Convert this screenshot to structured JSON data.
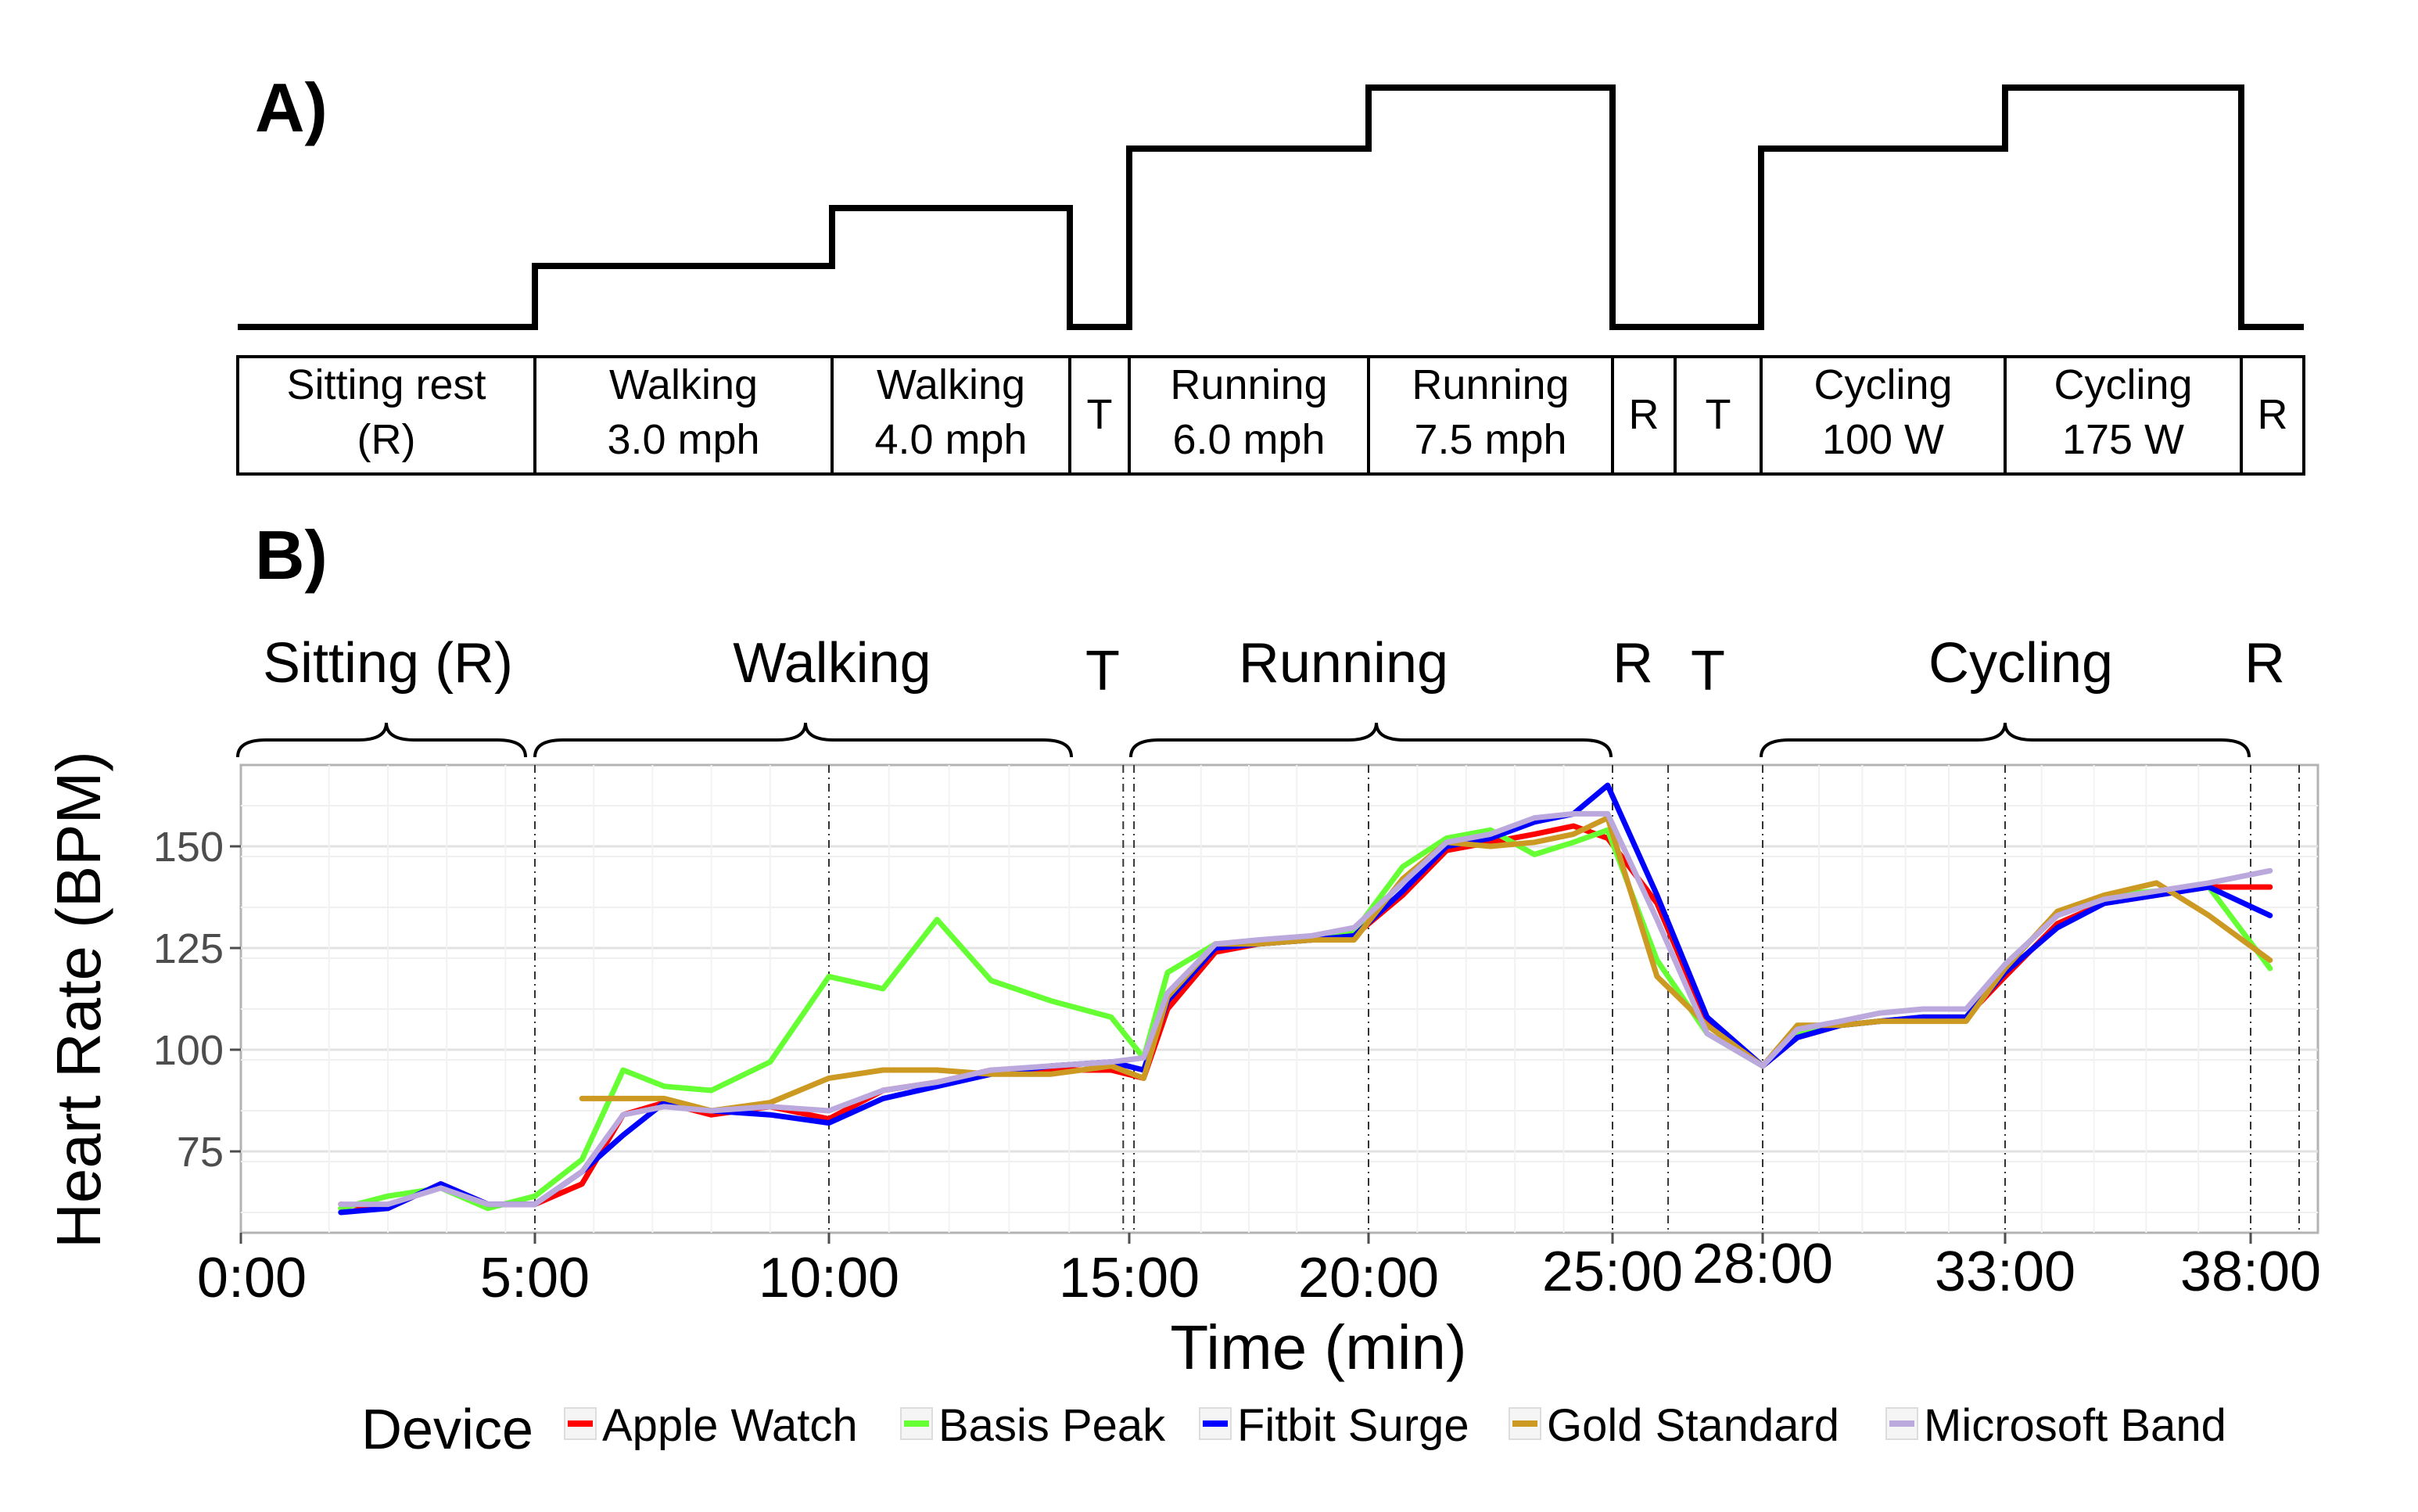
{
  "panel_a": {
    "label": "A)",
    "schedule": [
      {
        "name": "Sitting rest",
        "sub": "(R)",
        "level": 0
      },
      {
        "name": "Walking",
        "sub": "3.0 mph",
        "level": 1
      },
      {
        "name": "Walking",
        "sub": "4.0 mph",
        "level": 2
      },
      {
        "name": "T",
        "sub": "",
        "level": 0
      },
      {
        "name": "Running",
        "sub": "6.0 mph",
        "level": 3
      },
      {
        "name": "Running",
        "sub": "7.5 mph",
        "level": 4
      },
      {
        "name": "R",
        "sub": "",
        "level": 0
      },
      {
        "name": "T",
        "sub": "",
        "level": 0
      },
      {
        "name": "Cycling",
        "sub": "100 W",
        "level": 3
      },
      {
        "name": "Cycling",
        "sub": "175 W",
        "level": 4
      },
      {
        "name": "R",
        "sub": "",
        "level": 0
      }
    ]
  },
  "panel_b": {
    "label": "B)",
    "phases": {
      "sitting": "Sitting (R)",
      "walking": "Walking",
      "t1": "T",
      "running": "Running",
      "r1": "R",
      "t2": "T",
      "cycling": "Cycling",
      "r2": "R"
    }
  },
  "colors": {
    "Apple Watch": "#ff0000",
    "Basis Peak": "#66ff33",
    "Fitbit Surge": "#0000ff",
    "Gold Standard": "#cc9922",
    "Microsoft Band": "#bba8dd"
  },
  "chart_data": {
    "type": "line",
    "xlabel": "Time (min)",
    "ylabel": "Heart Rate (BPM)",
    "xlim": [
      0,
      38.5
    ],
    "ylim": [
      55,
      170
    ],
    "yticks": [
      75,
      100,
      125,
      150
    ],
    "xticks": [
      "0:00",
      "5:00",
      "10:00",
      "15:00",
      "20:00",
      "25:00",
      "28:00",
      "33:00",
      "38:00"
    ],
    "grid": true,
    "legend_title": "Device",
    "legend_position": "bottom",
    "series": [
      {
        "name": "Apple Watch",
        "points": [
          [
            1.7,
            62
          ],
          [
            2.5,
            61
          ],
          [
            3.4,
            67
          ],
          [
            4.2,
            62
          ],
          [
            5.0,
            62
          ],
          [
            5.8,
            67
          ],
          [
            6.5,
            84
          ],
          [
            7.2,
            87
          ],
          [
            8.0,
            84
          ],
          [
            9.0,
            86
          ],
          [
            10.0,
            83
          ],
          [
            10.9,
            90
          ],
          [
            11.8,
            92
          ],
          [
            12.7,
            95
          ],
          [
            13.7,
            95
          ],
          [
            14.7,
            95
          ],
          [
            15.3,
            93
          ],
          [
            15.8,
            110
          ],
          [
            16.8,
            124
          ],
          [
            17.7,
            126
          ],
          [
            18.8,
            127
          ],
          [
            19.7,
            128
          ],
          [
            20.7,
            138
          ],
          [
            21.6,
            149
          ],
          [
            22.5,
            151
          ],
          [
            23.4,
            153
          ],
          [
            24.2,
            155
          ],
          [
            24.9,
            152
          ],
          [
            25.8,
            136
          ],
          [
            26.7,
            107
          ],
          [
            27.7,
            96
          ],
          [
            28.5,
            103
          ],
          [
            29.5,
            106
          ],
          [
            30.4,
            107
          ],
          [
            31.4,
            108
          ],
          [
            32.4,
            108
          ],
          [
            33.3,
            118
          ],
          [
            34.3,
            131
          ],
          [
            35.2,
            136
          ],
          [
            36.2,
            138
          ],
          [
            37.2,
            140
          ],
          [
            38.2,
            140
          ]
        ]
      },
      {
        "name": "Basis Peak",
        "points": [
          [
            1.7,
            61
          ],
          [
            2.5,
            64
          ],
          [
            3.4,
            66
          ],
          [
            4.2,
            61
          ],
          [
            5.0,
            64
          ],
          [
            5.8,
            73
          ],
          [
            6.5,
            95
          ],
          [
            7.2,
            91
          ],
          [
            8.0,
            90
          ],
          [
            9.0,
            97
          ],
          [
            10.0,
            118
          ],
          [
            10.9,
            115
          ],
          [
            11.8,
            132
          ],
          [
            12.7,
            117
          ],
          [
            13.7,
            112
          ],
          [
            14.7,
            108
          ],
          [
            15.3,
            98
          ],
          [
            15.8,
            119
          ],
          [
            16.8,
            126
          ],
          [
            17.7,
            126
          ],
          [
            18.8,
            127
          ],
          [
            19.7,
            129
          ],
          [
            20.7,
            145
          ],
          [
            21.6,
            152
          ],
          [
            22.5,
            154
          ],
          [
            23.4,
            148
          ],
          [
            24.2,
            151
          ],
          [
            24.9,
            154
          ],
          [
            25.8,
            122
          ],
          [
            26.7,
            104
          ],
          [
            27.7,
            96
          ],
          [
            28.5,
            104
          ],
          [
            29.5,
            106
          ],
          [
            30.4,
            107
          ],
          [
            31.4,
            108
          ],
          [
            32.4,
            108
          ],
          [
            33.3,
            121
          ],
          [
            34.3,
            133
          ],
          [
            35.2,
            138
          ],
          [
            36.2,
            139
          ],
          [
            37.2,
            140
          ],
          [
            38.2,
            120
          ]
        ]
      },
      {
        "name": "Fitbit Surge",
        "points": [
          [
            1.7,
            60
          ],
          [
            2.5,
            61
          ],
          [
            3.4,
            67
          ],
          [
            4.2,
            62
          ],
          [
            5.0,
            62
          ],
          [
            5.8,
            70
          ],
          [
            6.5,
            79
          ],
          [
            7.2,
            87
          ],
          [
            8.0,
            85
          ],
          [
            9.0,
            84
          ],
          [
            10.0,
            82
          ],
          [
            10.9,
            88
          ],
          [
            11.8,
            91
          ],
          [
            12.7,
            94
          ],
          [
            13.7,
            96
          ],
          [
            14.7,
            97
          ],
          [
            15.3,
            95
          ],
          [
            15.8,
            112
          ],
          [
            16.8,
            125
          ],
          [
            17.7,
            126
          ],
          [
            18.8,
            127
          ],
          [
            19.7,
            128
          ],
          [
            20.7,
            139
          ],
          [
            21.6,
            150
          ],
          [
            22.5,
            152
          ],
          [
            23.4,
            156
          ],
          [
            24.2,
            158
          ],
          [
            24.9,
            165
          ],
          [
            25.8,
            138
          ],
          [
            26.7,
            108
          ],
          [
            27.7,
            96
          ],
          [
            28.5,
            103
          ],
          [
            29.5,
            106
          ],
          [
            30.4,
            107
          ],
          [
            31.4,
            108
          ],
          [
            32.4,
            108
          ],
          [
            33.3,
            119
          ],
          [
            34.3,
            130
          ],
          [
            35.2,
            136
          ],
          [
            36.2,
            138
          ],
          [
            37.2,
            140
          ],
          [
            38.2,
            133
          ]
        ]
      },
      {
        "name": "Gold Standard",
        "points": [
          [
            5.8,
            88
          ],
          [
            6.5,
            88
          ],
          [
            7.2,
            88
          ],
          [
            8.0,
            85
          ],
          [
            9.0,
            87
          ],
          [
            10.0,
            93
          ],
          [
            10.9,
            95
          ],
          [
            11.8,
            95
          ],
          [
            12.7,
            94
          ],
          [
            13.7,
            94
          ],
          [
            14.7,
            96
          ],
          [
            15.3,
            93
          ],
          [
            15.8,
            113
          ],
          [
            16.8,
            126
          ],
          [
            17.7,
            126
          ],
          [
            18.8,
            127
          ],
          [
            19.7,
            127
          ],
          [
            20.7,
            142
          ],
          [
            21.6,
            151
          ],
          [
            22.5,
            150
          ],
          [
            23.4,
            151
          ],
          [
            24.2,
            153
          ],
          [
            24.9,
            157
          ],
          [
            25.8,
            118
          ],
          [
            26.7,
            106
          ],
          [
            27.7,
            96
          ],
          [
            28.5,
            106
          ],
          [
            29.5,
            106
          ],
          [
            30.4,
            107
          ],
          [
            31.4,
            107
          ],
          [
            32.4,
            107
          ],
          [
            33.3,
            120
          ],
          [
            34.3,
            134
          ],
          [
            35.2,
            138
          ],
          [
            36.2,
            141
          ],
          [
            37.2,
            133
          ],
          [
            38.2,
            122
          ]
        ]
      },
      {
        "name": "Microsoft Band",
        "points": [
          [
            1.7,
            62
          ],
          [
            2.5,
            62
          ],
          [
            3.4,
            66
          ],
          [
            4.2,
            62
          ],
          [
            5.0,
            62
          ],
          [
            5.8,
            70
          ],
          [
            6.5,
            84
          ],
          [
            7.2,
            86
          ],
          [
            8.0,
            85
          ],
          [
            9.0,
            86
          ],
          [
            10.0,
            85
          ],
          [
            10.9,
            90
          ],
          [
            11.8,
            92
          ],
          [
            12.7,
            95
          ],
          [
            13.7,
            96
          ],
          [
            14.7,
            97
          ],
          [
            15.3,
            98
          ],
          [
            15.8,
            114
          ],
          [
            16.8,
            126
          ],
          [
            17.7,
            127
          ],
          [
            18.8,
            128
          ],
          [
            19.7,
            130
          ],
          [
            20.7,
            141
          ],
          [
            21.6,
            151
          ],
          [
            22.5,
            153
          ],
          [
            23.4,
            157
          ],
          [
            24.2,
            158
          ],
          [
            24.9,
            158
          ],
          [
            25.8,
            132
          ],
          [
            26.7,
            104
          ],
          [
            27.7,
            96
          ],
          [
            28.5,
            105
          ],
          [
            29.5,
            107
          ],
          [
            30.4,
            109
          ],
          [
            31.4,
            110
          ],
          [
            32.4,
            110
          ],
          [
            33.3,
            121
          ],
          [
            34.3,
            133
          ],
          [
            35.2,
            137
          ],
          [
            36.2,
            139
          ],
          [
            37.2,
            141
          ],
          [
            38.2,
            144
          ]
        ]
      }
    ]
  }
}
